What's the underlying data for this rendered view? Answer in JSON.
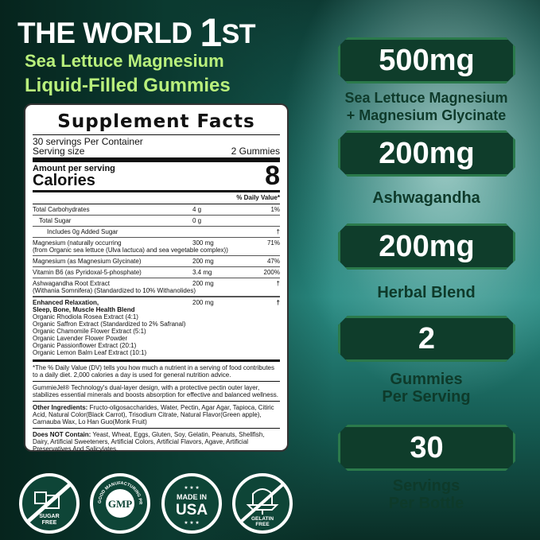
{
  "header": {
    "title": "THE WORLD",
    "title_num": "1",
    "title_suffix": "ST",
    "subtitle_1": "Sea Lettuce Magnesium",
    "subtitle_2": "Liquid-Filled Gummies"
  },
  "facts": {
    "heading": "Supplement Facts",
    "servings_per_container": "30 servings Per Container",
    "serving_size_label": "Serving size",
    "serving_size_value": "2 Gummies",
    "amount_per_serving": "Amount per serving",
    "calories_label": "Calories",
    "calories_value": "8",
    "dv_header": "% Daily Value*",
    "rows": [
      {
        "name": "Total Carbohydrates",
        "amount": "4 g",
        "dv": "1%"
      },
      {
        "name": "Total Sugar",
        "amount": "0 g",
        "dv": ""
      },
      {
        "name": "Includes 0g Added Sugar",
        "amount": "",
        "dv": "†"
      },
      {
        "name": "Magnesium (naturally occurring",
        "sub": "(from Organic sea lettuce (Ulva lactuca) and sea vegetable complex))",
        "amount": "300 mg",
        "dv": "71%"
      },
      {
        "name": "Magnesium (as Magnesium Glycinate)",
        "amount": "200 mg",
        "dv": "47%"
      },
      {
        "name": "Vitamin B6 (as Pyridoxal-5-phosphate)",
        "amount": "3.4 mg",
        "dv": "200%"
      },
      {
        "name": "Ashwagandha Root Extract",
        "sub": "(Withania Somnifera) (Standardized to 10% Withanolides)",
        "amount": "200 mg",
        "dv": "†"
      }
    ],
    "blend": {
      "name_1": "Enhanced Relaxation,",
      "name_2": "Sleep, Bone, Muscle Health Blend",
      "amount": "200 mg",
      "dv": "†",
      "items": [
        "Organic Rhodiola Rosea Extract (4:1)",
        "Organic Saffron Extract (Standardized to 2% Safranal)",
        "Organic Chamomile Flower Extract (5:1)",
        "Organic Lavender Flower Powder",
        "Organic Passionflower Extract (20:1)",
        "Organic Lemon Balm Leaf Extract (10:1)"
      ]
    },
    "footnote": "*The % Daily Value (DV) tells you how much a nutrient in a serving of food contributes to a daily diet. 2,000 calories a day is used for general nutrition advice.",
    "technology": "GummieJel® Technology's dual-layer design, with a protective pectin outer layer, stabilizes essential minerals and boosts absorption for effective and balanced wellness.",
    "other_label": "Other Ingredients:",
    "other_text": " Fructo-oligosaccharides, Water, Pectin, Agar Agar, Tapioca, Citiric Acid, Natural Color(Black Carrot), Trisodium Citrate, Natural Flavor(Green apple), Carnauba Wax, Lo Han Guo(Monk Fruit)",
    "not_label": "Does NOT Contain:",
    "not_text": " Yeast, Wheat, Eggs, Gluten, Soy, Gelatin, Peanuts, Shellfish, Dairy, Artificial Sweeteners, Artificial Colors, Artificial Flavors, Agave, Artificial Preservatives And Salicylates."
  },
  "highlights": [
    {
      "value": "500mg",
      "label_1": "Sea Lettuce Magnesium",
      "label_2": "+ Magnesium Glycinate"
    },
    {
      "value": "200mg",
      "label_1": "Ashwagandha",
      "label_2": ""
    },
    {
      "value": "200mg",
      "label_1": "Herbal Blend",
      "label_2": ""
    },
    {
      "value": "2",
      "label_1": "Gummies",
      "label_2": "Per Serving"
    },
    {
      "value": "30",
      "label_1": "Servings",
      "label_2": "Per Bottle"
    }
  ],
  "icons": [
    {
      "icon": "sugar-free-icon",
      "text_1": "SUGAR",
      "text_2": "FREE"
    },
    {
      "icon": "gmp-icon",
      "text_1": "GMP",
      "text_2": "GOOD MANUFACTURING PRACTICE"
    },
    {
      "icon": "made-in-usa-icon",
      "text_1": "MADE IN",
      "text_2": "USA",
      "stars": "★ ★ ★"
    },
    {
      "icon": "gelatin-free-icon",
      "text_1": "GELATIN",
      "text_2": "FREE"
    }
  ],
  "colors": {
    "badge": "#0f3d2b",
    "badge_border": "#2b7a4b",
    "subtitle": "#b9f07c",
    "label": "#0e3a2a"
  }
}
